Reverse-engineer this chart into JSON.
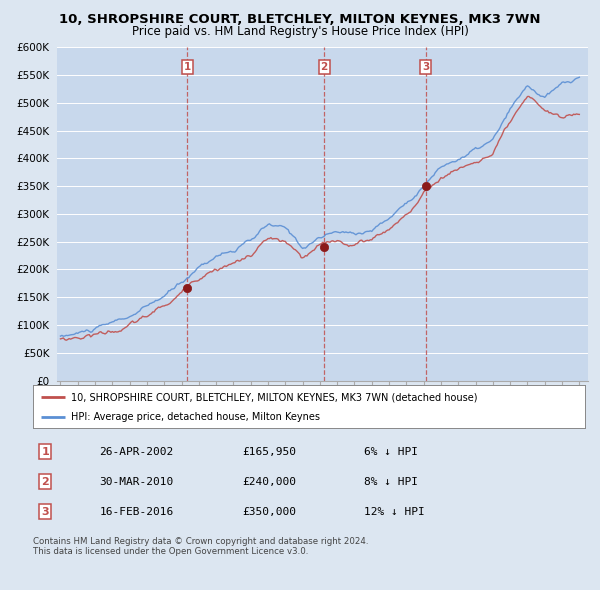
{
  "title": "10, SHROPSHIRE COURT, BLETCHLEY, MILTON KEYNES, MK3 7WN",
  "subtitle": "Price paid vs. HM Land Registry's House Price Index (HPI)",
  "ylim": [
    0,
    600000
  ],
  "yticks": [
    0,
    50000,
    100000,
    150000,
    200000,
    250000,
    300000,
    350000,
    400000,
    450000,
    500000,
    550000,
    600000
  ],
  "ytick_labels": [
    "£0",
    "£50K",
    "£100K",
    "£150K",
    "£200K",
    "£250K",
    "£300K",
    "£350K",
    "£400K",
    "£450K",
    "£500K",
    "£550K",
    "£600K"
  ],
  "background_color": "#dce6f1",
  "plot_bg_color": "#c8d8ec",
  "grid_color": "#ffffff",
  "legend_label_red": "10, SHROPSHIRE COURT, BLETCHLEY, MILTON KEYNES, MK3 7WN (detached house)",
  "legend_label_blue": "HPI: Average price, detached house, Milton Keynes",
  "footer": "Contains HM Land Registry data © Crown copyright and database right 2024.\nThis data is licensed under the Open Government Licence v3.0.",
  "sale_markers": [
    {
      "num": 1,
      "year": 2002.32,
      "price": 165950,
      "label": "26-APR-2002",
      "amount": "£165,950",
      "pct": "6% ↓ HPI"
    },
    {
      "num": 2,
      "year": 2010.25,
      "price": 240000,
      "label": "30-MAR-2010",
      "amount": "£240,000",
      "pct": "8% ↓ HPI"
    },
    {
      "num": 3,
      "year": 2016.12,
      "price": 350000,
      "label": "16-FEB-2016",
      "amount": "£350,000",
      "pct": "12% ↓ HPI"
    }
  ],
  "hpi_color": "#5b8fd4",
  "price_color": "#c0504d",
  "marker_color": "#8b1a1a",
  "box_color": "#c0504d",
  "xlim_left": 1995,
  "xlim_right": 2025.5
}
